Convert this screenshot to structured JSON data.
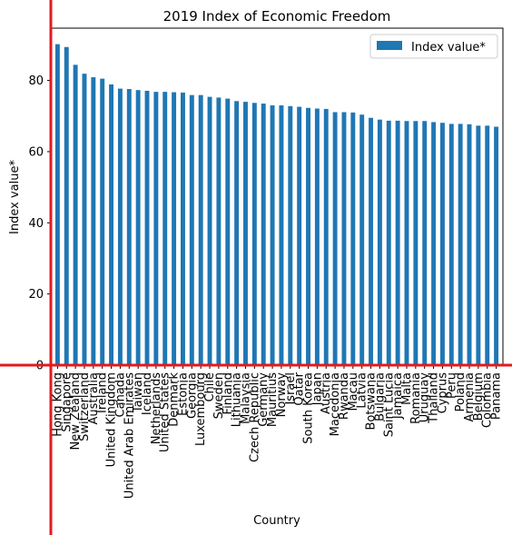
{
  "chart_data": {
    "type": "bar",
    "title": "2019 Index of Economic Freedom",
    "xlabel": "Country",
    "ylabel": "Index value*",
    "ylim": [
      0,
      94.7
    ],
    "yticks": [
      0,
      20,
      40,
      60,
      80
    ],
    "grid": false,
    "legend_position": "top-right",
    "colors": {
      "bar": "#1f77b4",
      "red_axis": "#e31a1c"
    },
    "categories": [
      "Hong Kong",
      "Singapore",
      "New Zealand",
      "Switzerland",
      "Australia",
      "Ireland",
      "United Kingdom",
      "Canada",
      "United Arab Emirates",
      "Taiwan",
      "Iceland",
      "Netherlands",
      "United States",
      "Denmark",
      "Estonia",
      "Georgia",
      "Luxembourg",
      "Chile",
      "Sweden",
      "Finland",
      "Lithuania",
      "Malaysia",
      "Czech Republic",
      "Germany",
      "Mauritius",
      "Norway",
      "Israel",
      "Qatar",
      "South Korea",
      "Japan",
      "Austria",
      "Macedonia",
      "Rwanda",
      "Macau",
      "Latvia",
      "Botswana",
      "Bulgaria",
      "Saint Lucia",
      "Jamaica",
      "Malta",
      "Romania",
      "Uruguay",
      "Thailand",
      "Cyprus",
      "Peru",
      "Poland",
      "Armenia",
      "Belgium",
      "Colombia",
      "Panama"
    ],
    "series": [
      {
        "name": "Index value*",
        "values": [
          90.2,
          89.4,
          84.4,
          81.9,
          80.9,
          80.5,
          78.9,
          77.7,
          77.6,
          77.3,
          77.1,
          76.8,
          76.8,
          76.7,
          76.6,
          75.9,
          75.9,
          75.4,
          75.2,
          74.9,
          74.2,
          74.0,
          73.7,
          73.5,
          73.0,
          73.0,
          72.8,
          72.6,
          72.3,
          72.1,
          72.0,
          71.1,
          71.1,
          71.0,
          70.4,
          69.5,
          69.0,
          68.7,
          68.7,
          68.6,
          68.6,
          68.6,
          68.3,
          68.1,
          67.8,
          67.8,
          67.7,
          67.3,
          67.3,
          67.0
        ]
      }
    ]
  }
}
